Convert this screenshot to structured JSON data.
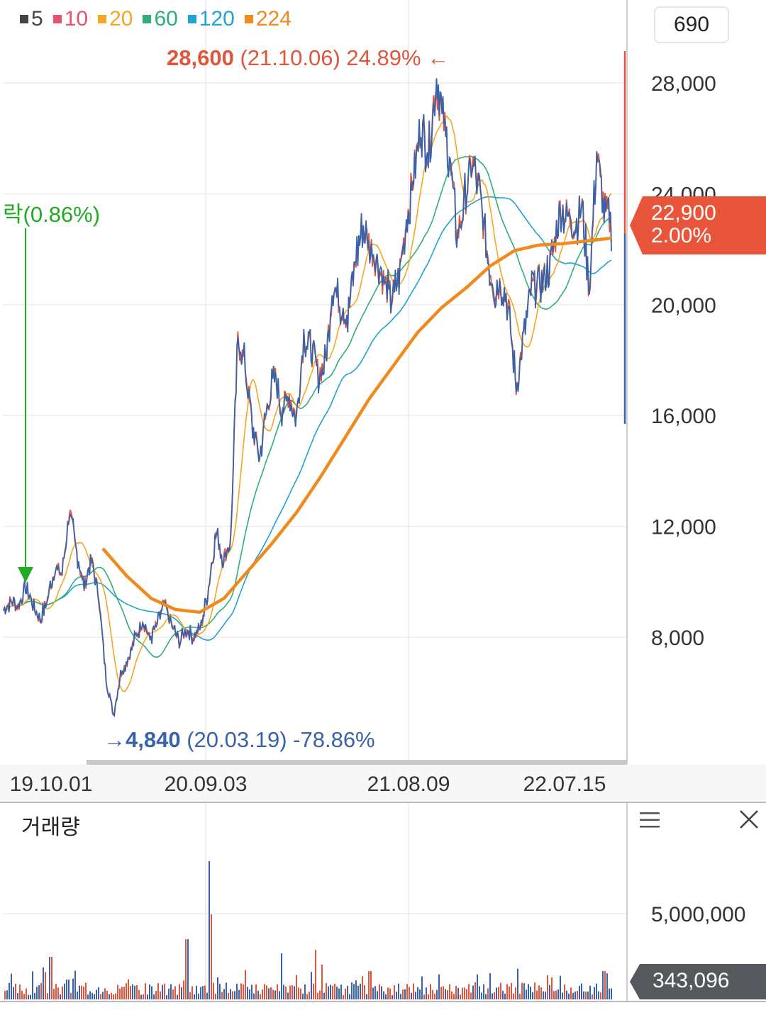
{
  "legend": [
    {
      "label": "5",
      "color": "#444444"
    },
    {
      "label": "10",
      "color": "#e8506e"
    },
    {
      "label": "20",
      "color": "#f5a623"
    },
    {
      "label": "60",
      "color": "#2fae7a"
    },
    {
      "label": "120",
      "color": "#1fa3d0"
    },
    {
      "label": "224",
      "color": "#f08a1c"
    }
  ],
  "top_badge": "690",
  "current_price": {
    "price": "22,900",
    "change": "2.00%",
    "color": "#e8553a"
  },
  "volume_label": "거래량",
  "volume_badge": {
    "value": "343,096",
    "color": "#55595e"
  },
  "annotations": {
    "high": {
      "arrow": "←",
      "value": "28,600",
      "date": "(21.10.06)",
      "pct": "24.89%",
      "color": "#e0553c"
    },
    "low": {
      "arrow": "→",
      "value": "4,840",
      "date": "(20.03.19)",
      "pct": "-78.86%",
      "color": "#3a62a8"
    },
    "drop": {
      "text": "락(0.86%)",
      "color": "#22aa22"
    }
  },
  "icons": {
    "menu": "menu-icon",
    "close": "close-icon"
  },
  "chart_data": {
    "type": "line",
    "title": "",
    "y_ticks": [
      8000,
      12000,
      16000,
      20000,
      24000,
      28000
    ],
    "y_tick_labels": [
      "8,000",
      "12,000",
      "16,000",
      "20,000",
      "24,000",
      "28,000"
    ],
    "ylim": [
      3000,
      30000
    ],
    "x_ticks": [
      "19.10.01",
      "20.09.03",
      "21.08.09",
      "22.07.15"
    ],
    "volume_ticks": [
      "5,000,000"
    ],
    "price_series": [
      [
        0,
        9000
      ],
      [
        2,
        9300
      ],
      [
        4,
        9100
      ],
      [
        6,
        9800
      ],
      [
        8,
        9200
      ],
      [
        10,
        8600
      ],
      [
        12,
        9400
      ],
      [
        14,
        10500
      ],
      [
        16,
        10300
      ],
      [
        18,
        12600
      ],
      [
        20,
        11000
      ],
      [
        22,
        9800
      ],
      [
        24,
        10800
      ],
      [
        26,
        9500
      ],
      [
        28,
        6500
      ],
      [
        30,
        5200
      ],
      [
        32,
        6700
      ],
      [
        34,
        7200
      ],
      [
        36,
        8000
      ],
      [
        38,
        8600
      ],
      [
        40,
        7900
      ],
      [
        42,
        8500
      ],
      [
        44,
        9200
      ],
      [
        46,
        8400
      ],
      [
        48,
        7800
      ],
      [
        50,
        8300
      ],
      [
        52,
        8000
      ],
      [
        54,
        8400
      ],
      [
        56,
        9800
      ],
      [
        58,
        11800
      ],
      [
        60,
        10800
      ],
      [
        62,
        11500
      ],
      [
        64,
        18700
      ],
      [
        66,
        17800
      ],
      [
        68,
        15500
      ],
      [
        70,
        14500
      ],
      [
        72,
        16300
      ],
      [
        74,
        17500
      ],
      [
        76,
        16200
      ],
      [
        78,
        16800
      ],
      [
        80,
        15900
      ],
      [
        82,
        18800
      ],
      [
        84,
        18400
      ],
      [
        86,
        17500
      ],
      [
        88,
        18000
      ],
      [
        90,
        20800
      ],
      [
        92,
        20000
      ],
      [
        94,
        19500
      ],
      [
        96,
        21500
      ],
      [
        98,
        22800
      ],
      [
        100,
        22200
      ],
      [
        102,
        21500
      ],
      [
        104,
        20800
      ],
      [
        106,
        20200
      ],
      [
        108,
        21000
      ],
      [
        110,
        23000
      ],
      [
        112,
        24700
      ],
      [
        114,
        26500
      ],
      [
        116,
        25500
      ],
      [
        118,
        28000
      ],
      [
        120,
        26800
      ],
      [
        122,
        25000
      ],
      [
        124,
        22500
      ],
      [
        126,
        23800
      ],
      [
        128,
        25200
      ],
      [
        130,
        24000
      ],
      [
        132,
        22000
      ],
      [
        134,
        20500
      ],
      [
        136,
        20800
      ],
      [
        138,
        19800
      ],
      [
        140,
        17000
      ],
      [
        142,
        18800
      ],
      [
        144,
        20500
      ],
      [
        146,
        20800
      ],
      [
        148,
        21000
      ],
      [
        150,
        21800
      ],
      [
        152,
        23500
      ],
      [
        154,
        23200
      ],
      [
        156,
        22800
      ],
      [
        158,
        23600
      ],
      [
        160,
        20500
      ],
      [
        162,
        25500
      ],
      [
        164,
        23500
      ],
      [
        166,
        22900
      ]
    ],
    "ma224": [
      [
        0,
        11200
      ],
      [
        6,
        10200
      ],
      [
        12,
        9400
      ],
      [
        18,
        9000
      ],
      [
        24,
        8900
      ],
      [
        30,
        9400
      ],
      [
        36,
        10400
      ],
      [
        42,
        11400
      ],
      [
        48,
        12500
      ],
      [
        54,
        13800
      ],
      [
        60,
        15200
      ],
      [
        66,
        16600
      ],
      [
        72,
        17800
      ],
      [
        78,
        19000
      ],
      [
        84,
        19900
      ],
      [
        90,
        20600
      ],
      [
        96,
        21400
      ],
      [
        102,
        21950
      ],
      [
        108,
        22150
      ],
      [
        114,
        22200
      ],
      [
        120,
        22300
      ],
      [
        126,
        22400
      ]
    ],
    "volume_peak_label": "5,000,000",
    "high": 28600,
    "low": 4840
  }
}
